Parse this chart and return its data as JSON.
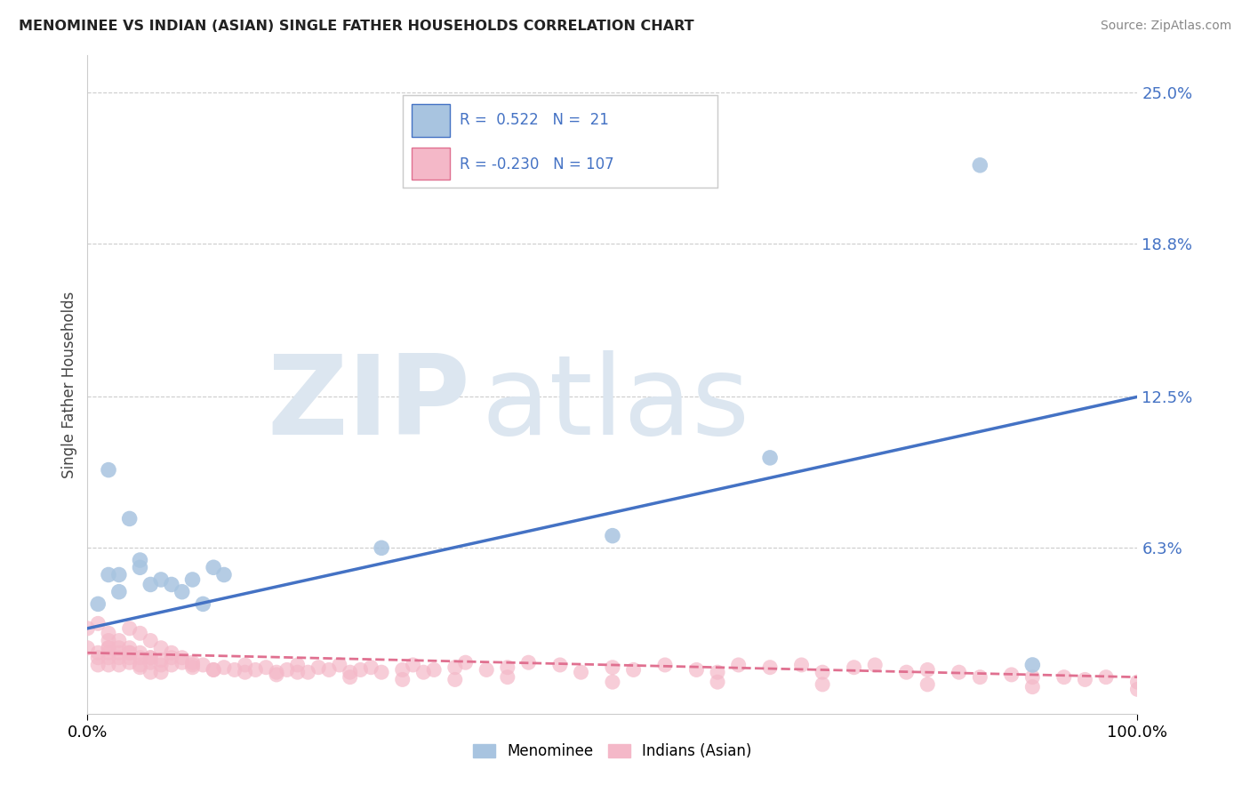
{
  "title": "MENOMINEE VS INDIAN (ASIAN) SINGLE FATHER HOUSEHOLDS CORRELATION CHART",
  "source": "Source: ZipAtlas.com",
  "ylabel": "Single Father Households",
  "y_tick_labels": [
    "25.0%",
    "18.8%",
    "12.5%",
    "6.3%"
  ],
  "y_tick_values": [
    0.25,
    0.188,
    0.125,
    0.063
  ],
  "xlim": [
    0.0,
    1.0
  ],
  "ylim": [
    -0.005,
    0.265
  ],
  "legend_label1": "Menominee",
  "legend_label2": "Indians (Asian)",
  "scatter_color1": "#a8c4e0",
  "scatter_color2": "#f4b8c8",
  "line_color1": "#4472c4",
  "line_color2": "#e07090",
  "watermark_zip": "ZIP",
  "watermark_atlas": "atlas",
  "watermark_color": "#dce6f0",
  "blue_scatter_x": [
    0.02,
    0.04,
    0.02,
    0.03,
    0.05,
    0.07,
    0.08,
    0.1,
    0.12,
    0.05,
    0.13,
    0.28,
    0.5,
    0.65,
    0.85,
    0.9,
    0.01,
    0.03,
    0.06,
    0.09,
    0.11
  ],
  "blue_scatter_y": [
    0.095,
    0.075,
    0.052,
    0.045,
    0.055,
    0.05,
    0.048,
    0.05,
    0.055,
    0.058,
    0.052,
    0.063,
    0.068,
    0.1,
    0.22,
    0.015,
    0.04,
    0.052,
    0.048,
    0.045,
    0.04
  ],
  "pink_scatter_x": [
    0.0,
    0.01,
    0.01,
    0.01,
    0.02,
    0.02,
    0.02,
    0.02,
    0.02,
    0.03,
    0.03,
    0.03,
    0.03,
    0.04,
    0.04,
    0.04,
    0.04,
    0.05,
    0.05,
    0.05,
    0.05,
    0.06,
    0.06,
    0.06,
    0.07,
    0.07,
    0.07,
    0.08,
    0.08,
    0.09,
    0.1,
    0.1,
    0.11,
    0.12,
    0.13,
    0.14,
    0.15,
    0.16,
    0.17,
    0.18,
    0.19,
    0.2,
    0.21,
    0.22,
    0.23,
    0.24,
    0.25,
    0.26,
    0.27,
    0.28,
    0.3,
    0.31,
    0.32,
    0.33,
    0.35,
    0.36,
    0.38,
    0.4,
    0.42,
    0.45,
    0.47,
    0.5,
    0.52,
    0.55,
    0.58,
    0.6,
    0.62,
    0.65,
    0.68,
    0.7,
    0.73,
    0.75,
    0.78,
    0.8,
    0.83,
    0.85,
    0.88,
    0.9,
    0.93,
    0.95,
    0.97,
    1.0,
    0.0,
    0.01,
    0.02,
    0.03,
    0.04,
    0.05,
    0.06,
    0.07,
    0.08,
    0.09,
    0.1,
    0.12,
    0.15,
    0.18,
    0.2,
    0.25,
    0.3,
    0.35,
    0.4,
    0.5,
    0.6,
    0.7,
    0.8,
    0.9,
    1.0,
    0.02,
    0.04,
    0.06
  ],
  "pink_scatter_y": [
    0.022,
    0.02,
    0.018,
    0.015,
    0.02,
    0.018,
    0.022,
    0.025,
    0.015,
    0.018,
    0.02,
    0.022,
    0.015,
    0.018,
    0.02,
    0.016,
    0.022,
    0.015,
    0.018,
    0.02,
    0.014,
    0.016,
    0.018,
    0.012,
    0.015,
    0.017,
    0.012,
    0.015,
    0.018,
    0.016,
    0.014,
    0.016,
    0.015,
    0.013,
    0.014,
    0.013,
    0.015,
    0.013,
    0.014,
    0.012,
    0.013,
    0.015,
    0.012,
    0.014,
    0.013,
    0.015,
    0.012,
    0.013,
    0.014,
    0.012,
    0.013,
    0.015,
    0.012,
    0.013,
    0.014,
    0.016,
    0.013,
    0.014,
    0.016,
    0.015,
    0.012,
    0.014,
    0.013,
    0.015,
    0.013,
    0.012,
    0.015,
    0.014,
    0.015,
    0.012,
    0.014,
    0.015,
    0.012,
    0.013,
    0.012,
    0.01,
    0.011,
    0.01,
    0.01,
    0.009,
    0.01,
    0.008,
    0.03,
    0.032,
    0.028,
    0.025,
    0.03,
    0.028,
    0.025,
    0.022,
    0.02,
    0.018,
    0.015,
    0.013,
    0.012,
    0.011,
    0.012,
    0.01,
    0.009,
    0.009,
    0.01,
    0.008,
    0.008,
    0.007,
    0.007,
    0.006,
    0.005,
    0.022,
    0.02,
    0.018
  ],
  "blue_line_x0": 0.0,
  "blue_line_y0": 0.03,
  "blue_line_x1": 1.0,
  "blue_line_y1": 0.125,
  "pink_line_x0": 0.0,
  "pink_line_y0": 0.02,
  "pink_line_x1": 1.0,
  "pink_line_y1": 0.01
}
